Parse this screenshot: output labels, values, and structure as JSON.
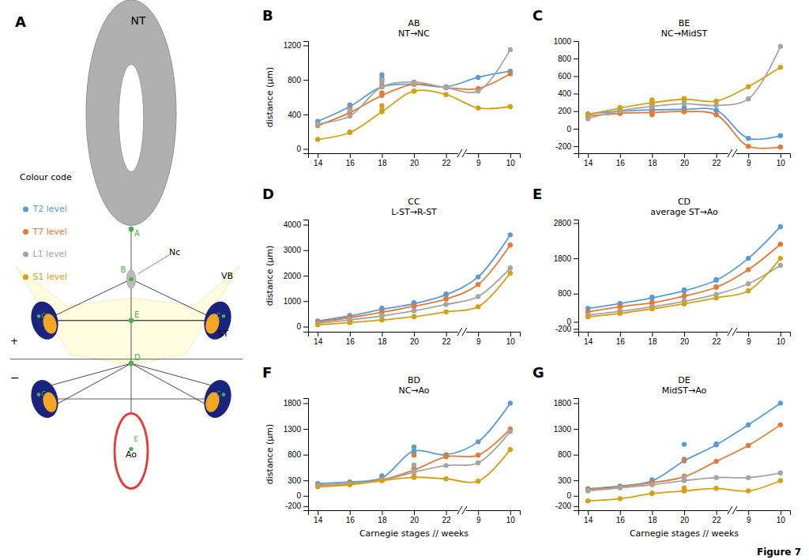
{
  "chart_data": [
    {
      "type": "diagram",
      "title": "A",
      "annotations": [
        "NT",
        "Colour code",
        "A",
        "VB",
        "B",
        "Nc",
        "E",
        "C",
        "ST",
        "D",
        "+",
        "−",
        "Ao",
        "Figure 7"
      ]
    },
    {
      "type": "line",
      "title": "AB\nNT→NC",
      "annotations": [
        "B"
      ],
      "ylabel": "distance  (µm)",
      "categories": [
        "14",
        "16",
        "18",
        "20",
        "22",
        "9",
        "10"
      ],
      "ylim": [
        -50,
        1250
      ],
      "yticks": [
        0,
        400,
        800,
        1200
      ],
      "grid": false,
      "legend": "left",
      "series": [
        {
          "name": "T2 level",
          "color": "#5B9BD5",
          "values": [
            320,
            490,
            720,
            750,
            720,
            830,
            900
          ],
          "replicates": [
            [],
            [
              510
            ],
            [
              820,
              860
            ],
            [
              760
            ],
            [],
            [],
            []
          ]
        },
        {
          "name": "T7 level",
          "color": "#E07B39",
          "values": [
            270,
            420,
            620,
            750,
            710,
            700,
            870
          ],
          "replicates": [
            [],
            [
              470
            ],
            [
              650,
              740
            ],
            [
              775
            ],
            [],
            [],
            []
          ]
        },
        {
          "name": "L1 level",
          "color": "#A5A5A5",
          "values": [
            290,
            380,
            720,
            775,
            710,
            670,
            1150
          ],
          "replicates": [
            [],
            [
              450
            ],
            [
              780,
              800
            ],
            [
              760
            ],
            [],
            [],
            []
          ]
        },
        {
          "name": "S1 level",
          "color": "#D4A017",
          "values": [
            110,
            190,
            430,
            670,
            630,
            475,
            490
          ],
          "replicates": [
            [],
            [
              195
            ],
            [
              500,
              450
            ],
            [
              670
            ],
            [],
            [],
            []
          ]
        }
      ]
    },
    {
      "type": "line",
      "title": "BE\nNC→MidST",
      "annotations": [
        "C"
      ],
      "categories": [
        "14",
        "16",
        "18",
        "20",
        "22",
        "9",
        "10"
      ],
      "ylim": [
        -280,
        1000
      ],
      "yticks": [
        -200,
        0,
        200,
        400,
        600,
        800,
        1000
      ],
      "grid": false,
      "series": [
        {
          "name": "T2 level",
          "color": "#5B9BD5",
          "values": [
            170,
            200,
            215,
            220,
            210,
            -110,
            -80
          ],
          "replicates": [
            [],
            [
              210
            ],
            [
              230,
              195
            ],
            [
              240
            ],
            [],
            [],
            []
          ]
        },
        {
          "name": "T7 level",
          "color": "#E07B39",
          "values": [
            145,
            175,
            185,
            195,
            160,
            -200,
            -210
          ],
          "replicates": [
            [],
            [
              178
            ],
            [
              195,
              160
            ],
            [
              195
            ],
            [],
            [],
            []
          ]
        },
        {
          "name": "L1 level",
          "color": "#A5A5A5",
          "values": [
            115,
            205,
            255,
            285,
            265,
            340,
            940
          ],
          "replicates": [
            [],
            [
              205
            ],
            [
              265,
              285
            ],
            [
              295
            ],
            [],
            [],
            []
          ]
        },
        {
          "name": "S1 level",
          "color": "#D4A017",
          "values": [
            160,
            235,
            295,
            335,
            315,
            480,
            700
          ],
          "replicates": [
            [],
            [
              240
            ],
            [
              315,
              330
            ],
            [
              345
            ],
            [],
            [],
            []
          ]
        }
      ]
    },
    {
      "type": "line",
      "title": "CC\nL-ST→R-ST",
      "annotations": [
        "D"
      ],
      "ylabel": "distance  (µm)",
      "categories": [
        "14",
        "16",
        "18",
        "20",
        "22",
        "9",
        "10"
      ],
      "ylim": [
        -200,
        4200
      ],
      "yticks": [
        0,
        1000,
        2000,
        3000,
        4000
      ],
      "grid": false,
      "series": [
        {
          "name": "T2 level",
          "color": "#5B9BD5",
          "values": [
            220,
            420,
            680,
            900,
            1250,
            1950,
            3600
          ],
          "replicates": [
            [],
            [
              440
            ],
            [
              720
            ],
            [
              940
            ],
            [
              1280
            ],
            [],
            []
          ]
        },
        {
          "name": "T7 level",
          "color": "#E07B39",
          "values": [
            180,
            350,
            560,
            800,
            1080,
            1650,
            3200
          ],
          "replicates": [
            [],
            [
              370
            ],
            [
              580
            ],
            [
              820
            ],
            [
              1100
            ],
            [],
            []
          ]
        },
        {
          "name": "L1 level",
          "color": "#A5A5A5",
          "values": [
            130,
            260,
            420,
            620,
            870,
            1180,
            2300
          ],
          "replicates": [
            [],
            [
              280
            ],
            [
              440
            ],
            [
              640
            ],
            [],
            [],
            []
          ]
        },
        {
          "name": "S1 level",
          "color": "#D4A017",
          "values": [
            70,
            160,
            260,
            390,
            580,
            780,
            2100
          ],
          "replicates": [
            [],
            [
              170
            ],
            [
              270
            ],
            [
              400
            ],
            [],
            [],
            []
          ]
        }
      ]
    },
    {
      "type": "line",
      "title": "CD\naverage ST→Ao",
      "annotations": [
        "E"
      ],
      "categories": [
        "14",
        "16",
        "18",
        "20",
        "22",
        "9",
        "10"
      ],
      "ylim": [
        -280,
        2900
      ],
      "yticks": [
        -200,
        0,
        800,
        1800,
        2800
      ],
      "grid": false,
      "series": [
        {
          "name": "T2 level",
          "color": "#5B9BD5",
          "values": [
            380,
            520,
            680,
            880,
            1180,
            1800,
            2700
          ],
          "replicates": [
            [],
            [
              510
            ],
            [
              700
            ],
            [
              910
            ],
            [
              1200
            ],
            [],
            []
          ]
        },
        {
          "name": "T7 level",
          "color": "#E07B39",
          "values": [
            280,
            430,
            540,
            730,
            980,
            1480,
            2200
          ],
          "replicates": [
            [],
            [
              450
            ],
            [
              550
            ],
            [
              745
            ],
            [
              1000
            ],
            [],
            []
          ]
        },
        {
          "name": "L1 level",
          "color": "#A5A5A5",
          "values": [
            190,
            300,
            430,
            580,
            780,
            1080,
            1600
          ],
          "replicates": [
            [],
            [
              315
            ],
            [
              445
            ],
            [
              600
            ],
            [],
            [],
            []
          ]
        },
        {
          "name": "S1 level",
          "color": "#D4A017",
          "values": [
            140,
            240,
            370,
            510,
            680,
            880,
            1800
          ],
          "replicates": [
            [],
            [
              250
            ],
            [
              380
            ],
            [
              520
            ],
            [],
            [],
            []
          ]
        }
      ]
    },
    {
      "type": "line",
      "title": "BD\nNC→Ao",
      "annotations": [
        "F"
      ],
      "ylabel": "distance  (µm)",
      "xlabel": "Carnegie stages //  weeks",
      "categories": [
        "14",
        "16",
        "18",
        "20",
        "22",
        "9",
        "10"
      ],
      "ylim": [
        -280,
        1900
      ],
      "yticks": [
        -200,
        0,
        300,
        800,
        1300,
        1800
      ],
      "grid": false,
      "series": [
        {
          "name": "T2 level",
          "color": "#5B9BD5",
          "values": [
            240,
            270,
            350,
            870,
            800,
            1050,
            1800
          ],
          "replicates": [
            [],
            [],
            [
              390
            ],
            [
              950,
              810
            ],
            [
              790
            ],
            [],
            []
          ]
        },
        {
          "name": "T7 level",
          "color": "#E07B39",
          "values": [
            210,
            240,
            310,
            500,
            760,
            790,
            1300
          ],
          "replicates": [
            [],
            [],
            [
              320
            ],
            [
              530,
              790
            ],
            [
              780
            ],
            [],
            []
          ]
        },
        {
          "name": "L1 level",
          "color": "#A5A5A5",
          "values": [
            200,
            230,
            300,
            460,
            590,
            640,
            1250
          ],
          "replicates": [
            [],
            [],
            [
              310
            ],
            [
              480,
              600
            ],
            [],
            [],
            []
          ]
        },
        {
          "name": "S1 level",
          "color": "#D4A017",
          "values": [
            175,
            215,
            295,
            360,
            330,
            285,
            900
          ],
          "replicates": [
            [],
            [],
            [
              300
            ],
            [
              380,
              360
            ],
            [],
            [],
            []
          ]
        }
      ]
    },
    {
      "type": "line",
      "title": "DE\nMidST→Ao",
      "annotations": [
        "G"
      ],
      "xlabel": "Carnegie stages //  weeks",
      "categories": [
        "14",
        "16",
        "18",
        "20",
        "22",
        "9",
        "10"
      ],
      "ylim": [
        -280,
        1900
      ],
      "yticks": [
        -200,
        0,
        300,
        800,
        1300,
        1800
      ],
      "grid": false,
      "series": [
        {
          "name": "T2 level",
          "color": "#5B9BD5",
          "values": [
            140,
            190,
            290,
            680,
            990,
            1380,
            1800
          ],
          "replicates": [
            [],
            [],
            [
              310
            ],
            [
              710,
              1000
            ],
            [
              1010
            ],
            [],
            []
          ]
        },
        {
          "name": "T7 level",
          "color": "#E07B39",
          "values": [
            125,
            175,
            255,
            370,
            670,
            980,
            1380
          ],
          "replicates": [
            [],
            [],
            [
              265
            ],
            [
              385,
              690
            ],
            [],
            [],
            []
          ]
        },
        {
          "name": "L1 level",
          "color": "#A5A5A5",
          "values": [
            95,
            155,
            215,
            295,
            355,
            355,
            445
          ],
          "replicates": [
            [],
            [],
            [
              225
            ],
            [
              305,
              365
            ],
            [],
            [],
            []
          ]
        },
        {
          "name": "S1 level",
          "color": "#D4A017",
          "values": [
            -100,
            -55,
            45,
            95,
            145,
            95,
            295
          ],
          "replicates": [
            [],
            [],
            [
              55
            ],
            [
              100,
              155
            ],
            [],
            [],
            []
          ]
        }
      ]
    }
  ]
}
